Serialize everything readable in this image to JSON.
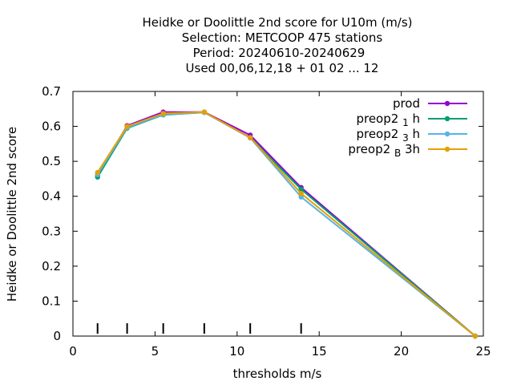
{
  "chart_data": {
    "type": "line",
    "title_lines": [
      "Heidke or Doolittle 2nd score  for U10m (m/s)",
      "Selection: METCOOP    475 stations",
      "Period: 20240610-20240629",
      "Used  00,06,12,18 + 01 02 ... 12"
    ],
    "xlabel": "thresholds m/s",
    "ylabel": "Heidke or Doolittle 2nd score",
    "xlim": [
      0,
      25
    ],
    "ylim": [
      0,
      0.7
    ],
    "xticks": [
      "0",
      "5",
      "10",
      "15",
      "20",
      "25"
    ],
    "yticks": [
      "0",
      "0.1",
      "0.2",
      "0.3",
      "0.4",
      "0.5",
      "0.6",
      "0.7"
    ],
    "x": [
      1.5,
      3.3,
      5.5,
      8.0,
      10.8,
      13.9,
      24.5
    ],
    "series": [
      {
        "name": "prod",
        "name_parts": [
          "prod"
        ],
        "color": "#9400d3",
        "values": [
          0.46,
          0.602,
          0.641,
          0.641,
          0.575,
          0.425,
          0.0
        ]
      },
      {
        "name": "preop2 1 h",
        "name_parts": [
          "preop2 ",
          "1",
          " h"
        ],
        "color": "#009e73",
        "values": [
          0.455,
          0.595,
          0.633,
          0.64,
          0.568,
          0.42,
          0.0
        ]
      },
      {
        "name": "preop2 3 h",
        "name_parts": [
          "preop2 ",
          "3",
          " h"
        ],
        "color": "#56b4e9",
        "values": [
          0.462,
          0.597,
          0.634,
          0.64,
          0.567,
          0.398,
          0.0
        ]
      },
      {
        "name": "preop2 B 3h",
        "name_parts": [
          "preop2 ",
          "B",
          " 3h"
        ],
        "color": "#e69f00",
        "values": [
          0.468,
          0.6,
          0.637,
          0.641,
          0.568,
          0.408,
          0.0
        ]
      }
    ],
    "threshold_markers": [
      1.5,
      3.3,
      5.5,
      8.0,
      10.8,
      13.9
    ],
    "legend_position": "top-right",
    "grid": false
  }
}
